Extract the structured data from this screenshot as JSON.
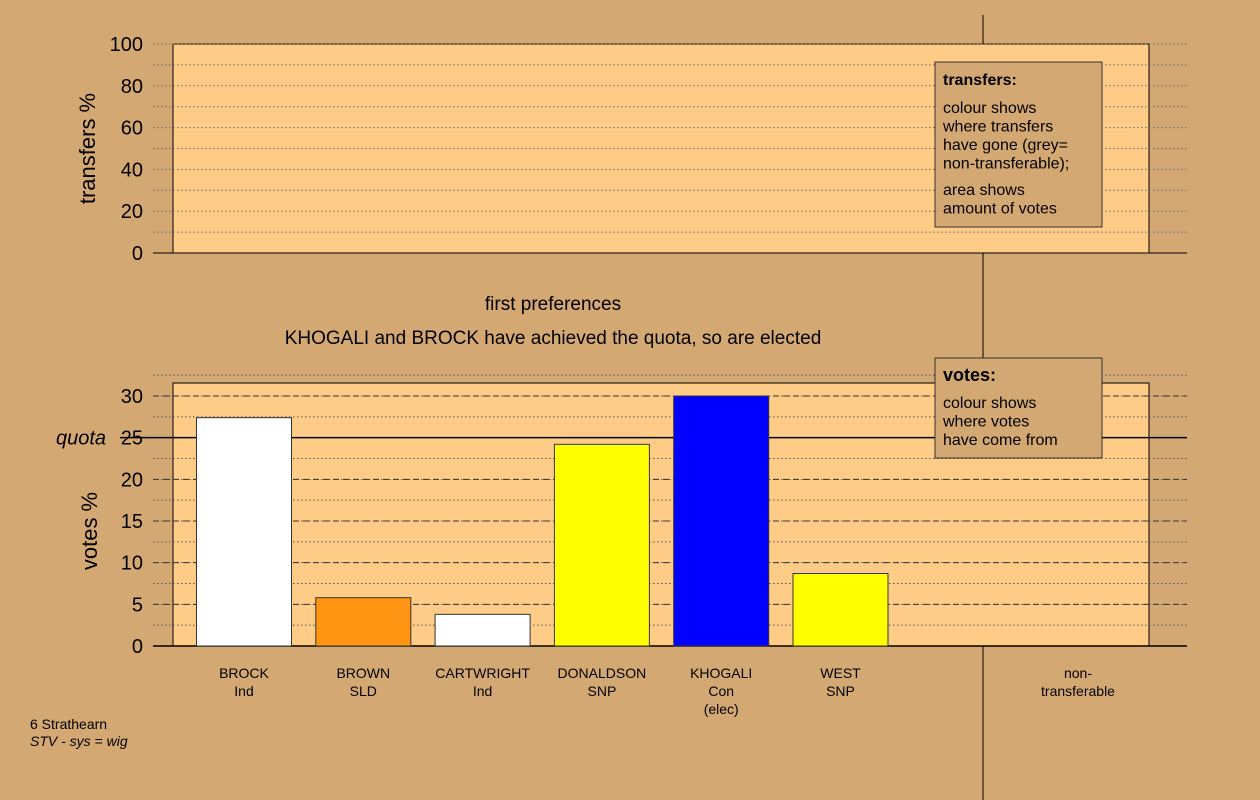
{
  "footnote": {
    "constituency": "6 Strathearn",
    "system": "STV - sys = wig"
  },
  "colors": {
    "background": "#d4a873",
    "plot_fill": "#ffcc88",
    "Ind": "#ffffff",
    "SLD": "#ff9512",
    "SNP": "#ffff00",
    "Con": "#0000ff"
  },
  "chart_data": [
    {
      "type": "bar",
      "panel": "transfers",
      "ylabel": "transfers %",
      "ylim": [
        0,
        100
      ],
      "yticks": [
        "0",
        "20",
        "40",
        "60",
        "80",
        "100"
      ],
      "grid": true,
      "values": [],
      "legend": {
        "title": "transfers:",
        "lines1": [
          "colour shows",
          "where transfers",
          "have gone (grey=",
          "non-transferable);"
        ],
        "lines2": [
          "area shows",
          "amount of votes"
        ]
      }
    },
    {
      "type": "bar",
      "panel": "votes",
      "stage_title": "first preferences",
      "message": "KHOGALI and BROCK have achieved the quota, so are elected",
      "ylabel": "votes %",
      "quota_label": "quota",
      "quota": 25,
      "ylim": [
        0,
        30
      ],
      "yticks": [
        "0",
        "5",
        "10",
        "15",
        "20",
        "25",
        "30"
      ],
      "grid": true,
      "categories": [
        {
          "name": "BROCK",
          "party": "Ind",
          "note": "",
          "value": 27.4,
          "color": "#ffffff"
        },
        {
          "name": "BROWN",
          "party": "SLD",
          "note": "",
          "value": 5.8,
          "color": "#ff9512"
        },
        {
          "name": "CARTWRIGHT",
          "party": "Ind",
          "note": "",
          "value": 3.8,
          "color": "#ffffff"
        },
        {
          "name": "DONALDSON",
          "party": "SNP",
          "note": "",
          "value": 24.2,
          "color": "#ffff00"
        },
        {
          "name": "KHOGALI",
          "party": "Con",
          "note": "(elec)",
          "value": 30.0,
          "color": "#0000ff"
        },
        {
          "name": "WEST",
          "party": "SNP",
          "note": "",
          "value": 8.7,
          "color": "#ffff00"
        }
      ],
      "nontransferable_label": [
        "non-",
        "transferable"
      ],
      "legend": {
        "title": "votes:",
        "lines": [
          "colour shows",
          "where votes",
          "have come from"
        ]
      }
    }
  ]
}
